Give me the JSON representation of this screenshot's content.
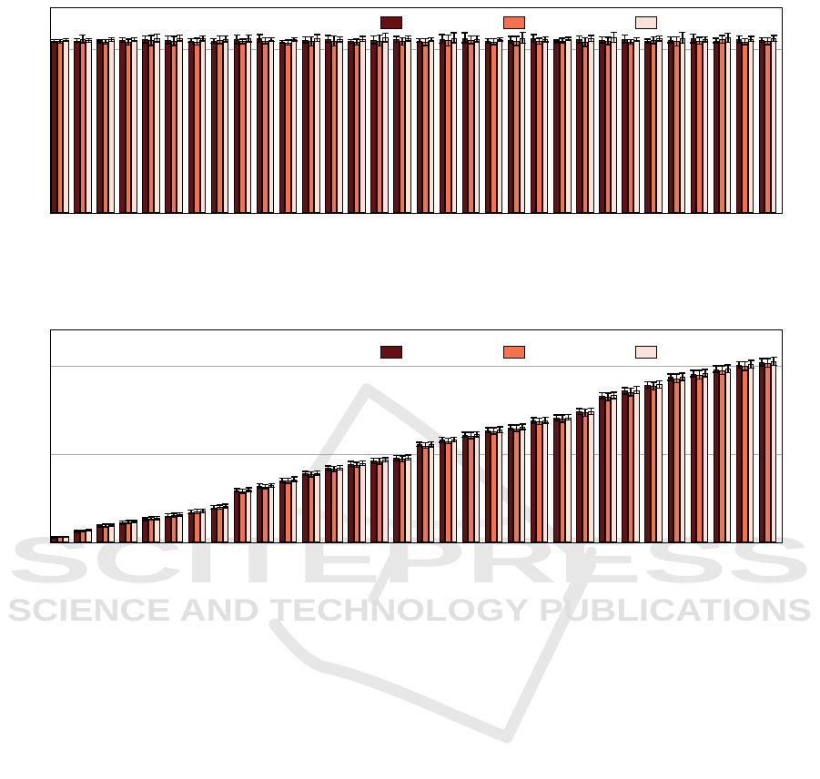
{
  "page": {
    "background": "#ffffff"
  },
  "palette": {
    "series1": "#651114",
    "series2": "#f4724e",
    "series3": "#fae3d6",
    "bar_border": "#000000",
    "gridline": "#a9a9a9",
    "axis_frame": "#000000",
    "watermark_gray": "#e7e7e7",
    "watermark_text_gray": "#e0e0e0"
  },
  "watermark": {
    "title": "SCITEPRESS",
    "subtitle": "SCIENCE AND TECHNOLOGY PUBLICATIONS"
  },
  "chart_data": [
    {
      "type": "bar",
      "title": "",
      "xlabel": "",
      "ylabel": "",
      "ylim": [
        0,
        1.0
      ],
      "gridlines": [
        0.8
      ],
      "grid": "horizontal",
      "group_count": 32,
      "categories": [],
      "tick_labels_visible": false,
      "error_bars": true,
      "legend_position": "top-center-inside",
      "legend": [
        {
          "label": "",
          "color": "#651114"
        },
        {
          "label": "",
          "color": "#f4724e"
        },
        {
          "label": "",
          "color": "#fae3d6"
        }
      ],
      "series": [
        {
          "name": "series-dark-red",
          "values": [
            0.84,
            0.842,
            0.838,
            0.845,
            0.848,
            0.846,
            0.842,
            0.84,
            0.848,
            0.852,
            0.836,
            0.845,
            0.85,
            0.838,
            0.845,
            0.848,
            0.842,
            0.85,
            0.855,
            0.84,
            0.846,
            0.852,
            0.838,
            0.848,
            0.845,
            0.85,
            0.84,
            0.846,
            0.852,
            0.842,
            0.848,
            0.844
          ],
          "errors": [
            0.01,
            0.012,
            0.01,
            0.015,
            0.02,
            0.022,
            0.012,
            0.015,
            0.025,
            0.022,
            0.01,
            0.018,
            0.02,
            0.012,
            0.022,
            0.018,
            0.012,
            0.025,
            0.028,
            0.015,
            0.02,
            0.022,
            0.01,
            0.02,
            0.018,
            0.022,
            0.012,
            0.018,
            0.025,
            0.015,
            0.02,
            0.015
          ]
        },
        {
          "name": "series-orange",
          "values": [
            0.838,
            0.85,
            0.836,
            0.834,
            0.843,
            0.84,
            0.836,
            0.845,
            0.838,
            0.842,
            0.832,
            0.838,
            0.84,
            0.834,
            0.842,
            0.838,
            0.835,
            0.843,
            0.845,
            0.836,
            0.84,
            0.838,
            0.842,
            0.835,
            0.84,
            0.836,
            0.844,
            0.838,
            0.842,
            0.848,
            0.836,
            0.84
          ],
          "errors": [
            0.012,
            0.022,
            0.015,
            0.018,
            0.028,
            0.025,
            0.02,
            0.022,
            0.015,
            0.018,
            0.015,
            0.025,
            0.028,
            0.018,
            0.03,
            0.022,
            0.02,
            0.03,
            0.022,
            0.018,
            0.025,
            0.018,
            0.015,
            0.025,
            0.022,
            0.015,
            0.02,
            0.025,
            0.02,
            0.022,
            0.018,
            0.02
          ]
        },
        {
          "name": "series-light-peach",
          "values": [
            0.845,
            0.843,
            0.847,
            0.846,
            0.855,
            0.855,
            0.852,
            0.85,
            0.852,
            0.846,
            0.848,
            0.855,
            0.848,
            0.85,
            0.857,
            0.852,
            0.846,
            0.855,
            0.85,
            0.848,
            0.855,
            0.848,
            0.85,
            0.852,
            0.858,
            0.846,
            0.852,
            0.855,
            0.848,
            0.856,
            0.85,
            0.852
          ],
          "errors": [
            0.01,
            0.012,
            0.012,
            0.012,
            0.022,
            0.018,
            0.015,
            0.018,
            0.02,
            0.012,
            0.012,
            0.02,
            0.015,
            0.015,
            0.025,
            0.015,
            0.012,
            0.028,
            0.018,
            0.012,
            0.03,
            0.015,
            0.012,
            0.018,
            0.028,
            0.012,
            0.015,
            0.03,
            0.015,
            0.025,
            0.015,
            0.018
          ]
        }
      ]
    },
    {
      "type": "bar",
      "title": "",
      "xlabel": "",
      "ylabel": "",
      "ylim": [
        0,
        1.2
      ],
      "gridlines": [
        0.5,
        1.0
      ],
      "grid": "horizontal",
      "group_count": 32,
      "categories": [],
      "tick_labels_visible": false,
      "error_bars": true,
      "legend_position": "top-center-inside",
      "legend": [
        {
          "label": "",
          "color": "#651114"
        },
        {
          "label": "",
          "color": "#f4724e"
        },
        {
          "label": "",
          "color": "#fae3d6"
        }
      ],
      "series": [
        {
          "name": "series-dark-red",
          "values": [
            0.028,
            0.062,
            0.092,
            0.112,
            0.132,
            0.152,
            0.172,
            0.198,
            0.295,
            0.32,
            0.352,
            0.39,
            0.42,
            0.445,
            0.462,
            0.478,
            0.555,
            0.58,
            0.61,
            0.635,
            0.65,
            0.69,
            0.706,
            0.74,
            0.83,
            0.858,
            0.892,
            0.935,
            0.955,
            0.98,
            1.005,
            1.02
          ],
          "errors": [
            0.006,
            0.008,
            0.01,
            0.012,
            0.012,
            0.014,
            0.014,
            0.014,
            0.014,
            0.016,
            0.016,
            0.016,
            0.016,
            0.018,
            0.018,
            0.018,
            0.016,
            0.018,
            0.018,
            0.018,
            0.018,
            0.02,
            0.02,
            0.02,
            0.02,
            0.022,
            0.022,
            0.022,
            0.022,
            0.022,
            0.022,
            0.024
          ]
        },
        {
          "name": "series-orange",
          "values": [
            0.03,
            0.065,
            0.095,
            0.115,
            0.135,
            0.155,
            0.175,
            0.2,
            0.29,
            0.315,
            0.35,
            0.386,
            0.415,
            0.44,
            0.46,
            0.472,
            0.548,
            0.574,
            0.604,
            0.63,
            0.646,
            0.684,
            0.7,
            0.734,
            0.824,
            0.852,
            0.885,
            0.928,
            0.948,
            0.974,
            0.998,
            1.015
          ],
          "errors": [
            0.006,
            0.008,
            0.012,
            0.012,
            0.014,
            0.014,
            0.016,
            0.016,
            0.016,
            0.016,
            0.018,
            0.018,
            0.018,
            0.018,
            0.02,
            0.02,
            0.02,
            0.02,
            0.022,
            0.022,
            0.022,
            0.022,
            0.024,
            0.024,
            0.024,
            0.026,
            0.026,
            0.028,
            0.028,
            0.028,
            0.028,
            0.028
          ]
        },
        {
          "name": "series-light-peach",
          "values": [
            0.032,
            0.068,
            0.098,
            0.118,
            0.138,
            0.158,
            0.178,
            0.205,
            0.298,
            0.322,
            0.358,
            0.393,
            0.422,
            0.448,
            0.468,
            0.48,
            0.556,
            0.582,
            0.612,
            0.638,
            0.654,
            0.692,
            0.708,
            0.742,
            0.832,
            0.862,
            0.894,
            0.938,
            0.958,
            0.982,
            1.008,
            1.025
          ],
          "errors": [
            0.006,
            0.008,
            0.01,
            0.01,
            0.012,
            0.012,
            0.014,
            0.014,
            0.014,
            0.014,
            0.016,
            0.016,
            0.016,
            0.016,
            0.016,
            0.018,
            0.018,
            0.018,
            0.018,
            0.02,
            0.02,
            0.02,
            0.02,
            0.022,
            0.022,
            0.024,
            0.024,
            0.024,
            0.024,
            0.026,
            0.026,
            0.026
          ]
        }
      ]
    }
  ]
}
